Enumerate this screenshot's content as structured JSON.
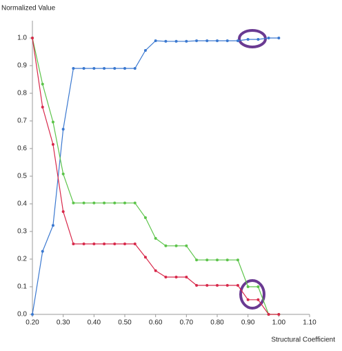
{
  "chart_data": {
    "type": "line",
    "y_label": "Normalized Value",
    "x_label": "Structural Coefficient",
    "x": [
      0.2,
      0.233,
      0.267,
      0.3,
      0.333,
      0.367,
      0.4,
      0.433,
      0.467,
      0.5,
      0.533,
      0.567,
      0.6,
      0.633,
      0.667,
      0.7,
      0.733,
      0.767,
      0.8,
      0.833,
      0.867,
      0.9,
      0.933,
      0.967,
      1.0
    ],
    "series": [
      {
        "color": "#3a78d0",
        "values": [
          0.0,
          0.228,
          0.322,
          0.67,
          0.89,
          0.89,
          0.89,
          0.89,
          0.89,
          0.89,
          0.89,
          0.955,
          0.99,
          0.988,
          0.988,
          0.988,
          0.99,
          0.99,
          0.99,
          0.99,
          0.99,
          0.995,
          0.995,
          1.0,
          1.0
        ]
      },
      {
        "color": "#5cc44a",
        "values": [
          1.0,
          0.833,
          0.696,
          0.508,
          0.403,
          0.403,
          0.403,
          0.403,
          0.403,
          0.403,
          0.403,
          0.35,
          0.275,
          0.248,
          0.248,
          0.248,
          0.197,
          0.197,
          0.197,
          0.197,
          0.197,
          0.1,
          0.1,
          0.0,
          0.0
        ]
      },
      {
        "color": "#d8284a",
        "values": [
          1.0,
          0.75,
          0.615,
          0.372,
          0.255,
          0.255,
          0.255,
          0.255,
          0.255,
          0.255,
          0.255,
          0.207,
          0.158,
          0.135,
          0.135,
          0.135,
          0.105,
          0.105,
          0.105,
          0.105,
          0.105,
          0.053,
          0.053,
          0.0,
          0.0
        ]
      }
    ],
    "xlim": [
      0.2,
      1.1
    ],
    "ylim": [
      0,
      1.0
    ],
    "xticks": [
      {
        "value": 0.2,
        "label": "0.20"
      },
      {
        "value": 0.3,
        "label": "0.30"
      },
      {
        "value": 0.4,
        "label": "0.40"
      },
      {
        "value": 0.5,
        "label": "0.50"
      },
      {
        "value": 0.6,
        "label": "0.60"
      },
      {
        "value": 0.7,
        "label": "0.70"
      },
      {
        "value": 0.8,
        "label": "0.80"
      },
      {
        "value": 0.9,
        "label": "0.90"
      },
      {
        "value": 1.0,
        "label": "1.00"
      },
      {
        "value": 1.1,
        "label": "1.10"
      }
    ],
    "yticks": [
      {
        "value": 0,
        "label": "0.0"
      },
      0.1,
      0.2,
      0.3,
      0.4,
      0.5,
      0.6,
      0.7,
      0.8,
      0.9,
      {
        "value": 1.0,
        "label": "1.0"
      }
    ]
  }
}
